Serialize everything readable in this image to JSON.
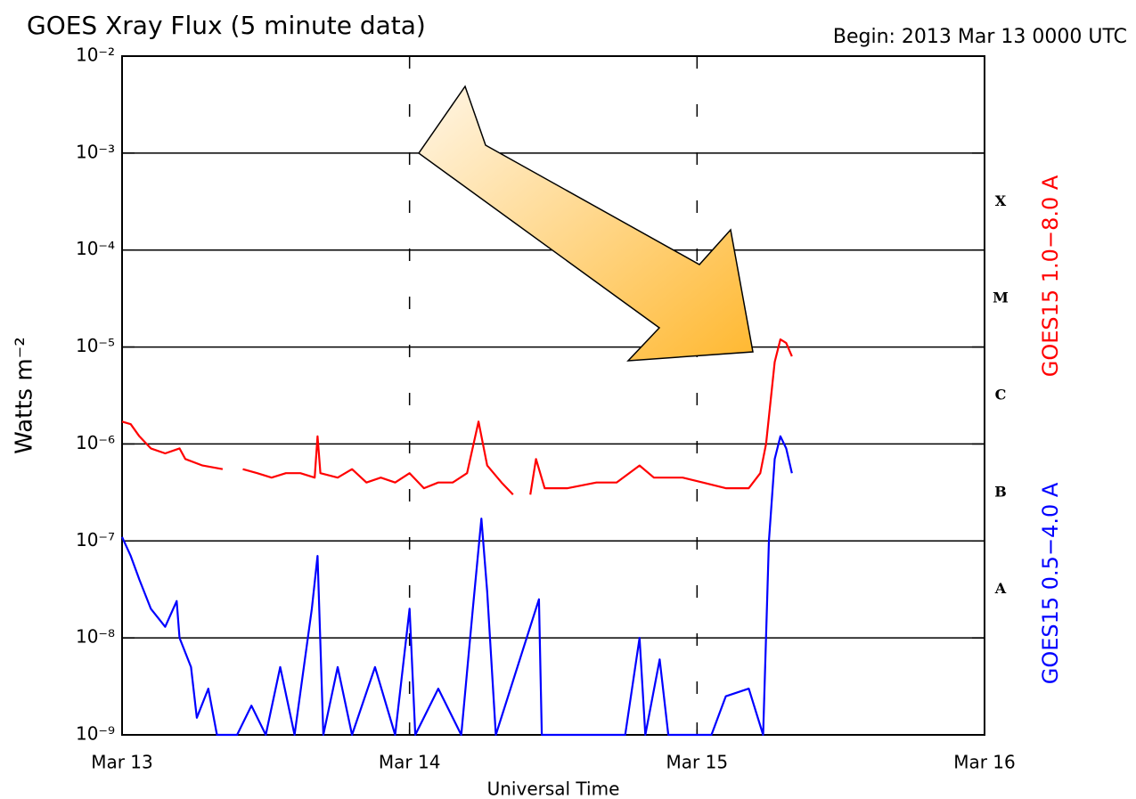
{
  "chart_data": {
    "type": "line",
    "title": "GOES Xray Flux (5 minute data)",
    "subtitle": "Begin:  2013 Mar 13 0000 UTC",
    "xlabel": "Universal Time",
    "ylabel": "Watts m⁻²",
    "log_y": true,
    "grid": true,
    "xlim": [
      0,
      3
    ],
    "xticks": [
      {
        "value": 0,
        "label": "Mar 13"
      },
      {
        "value": 1,
        "label": "Mar 14"
      },
      {
        "value": 2,
        "label": "Mar 15"
      },
      {
        "value": 3,
        "label": "Mar 16"
      }
    ],
    "ylim": [
      1e-09,
      0.01
    ],
    "yticks": [
      {
        "value": 1e-09,
        "label": "10⁻⁹"
      },
      {
        "value": 1e-08,
        "label": "10⁻⁸"
      },
      {
        "value": 1e-07,
        "label": "10⁻⁷"
      },
      {
        "value": 1e-06,
        "label": "10⁻⁶"
      },
      {
        "value": 1e-05,
        "label": "10⁻⁵"
      },
      {
        "value": 0.0001,
        "label": "10⁻⁴"
      },
      {
        "value": 0.001,
        "label": "10⁻³"
      },
      {
        "value": 0.01,
        "label": "10⁻²"
      }
    ],
    "flare_classes": [
      "A",
      "B",
      "C",
      "M",
      "X"
    ],
    "series": [
      {
        "name": "GOES15 1.0−8.0 A",
        "color": "#ff0000",
        "x": [
          0,
          0.03,
          0.06,
          0.1,
          0.15,
          0.2,
          0.22,
          0.28,
          0.35,
          0.38,
          0.42,
          0.47,
          0.52,
          0.57,
          0.62,
          0.67,
          0.68,
          0.69,
          0.75,
          0.8,
          0.85,
          0.9,
          0.95,
          1.0,
          1.05,
          1.1,
          1.15,
          1.2,
          1.24,
          1.27,
          1.32,
          1.36,
          1.38,
          1.42,
          1.44,
          1.47,
          1.55,
          1.65,
          1.72,
          1.8,
          1.85,
          1.95,
          2.02,
          2.1,
          2.18,
          2.22,
          2.24,
          2.27,
          2.29,
          2.31,
          2.33
        ],
        "values": [
          1.7e-06,
          1.6e-06,
          1.2e-06,
          9e-07,
          8e-07,
          9e-07,
          7e-07,
          6e-07,
          5.5e-07,
          null,
          5.5e-07,
          5e-07,
          4.5e-07,
          5e-07,
          5e-07,
          4.5e-07,
          1.2e-06,
          5e-07,
          4.5e-07,
          5.5e-07,
          4e-07,
          4.5e-07,
          4e-07,
          5e-07,
          3.5e-07,
          4e-07,
          4e-07,
          5e-07,
          1.7e-06,
          6e-07,
          4e-07,
          3e-07,
          null,
          3e-07,
          7e-07,
          3.5e-07,
          3.5e-07,
          4e-07,
          4e-07,
          6e-07,
          4.5e-07,
          4.5e-07,
          4e-07,
          3.5e-07,
          3.5e-07,
          5e-07,
          1e-06,
          7e-06,
          1.2e-05,
          1.1e-05,
          8e-06
        ]
      },
      {
        "name": "GOES15 0.5−4.0 A",
        "color": "#0000ff",
        "x": [
          0,
          0.03,
          0.06,
          0.1,
          0.15,
          0.19,
          0.2,
          0.24,
          0.26,
          0.3,
          0.33,
          0.4,
          0.45,
          0.5,
          0.55,
          0.6,
          0.66,
          0.68,
          0.7,
          0.75,
          0.8,
          0.88,
          0.95,
          1.0,
          1.02,
          1.1,
          1.18,
          1.22,
          1.25,
          1.27,
          1.3,
          1.45,
          1.46,
          1.6,
          1.75,
          1.8,
          1.82,
          1.87,
          1.9,
          2.05,
          2.1,
          2.18,
          2.23,
          2.25,
          2.27,
          2.29,
          2.31,
          2.33
        ],
        "values": [
          1.1e-07,
          7e-08,
          4e-08,
          2e-08,
          1.3e-08,
          2.4e-08,
          1e-08,
          5e-09,
          1.5e-09,
          3e-09,
          1e-09,
          1e-09,
          2e-09,
          1e-09,
          5e-09,
          1e-09,
          2e-08,
          7e-08,
          1e-09,
          5e-09,
          1e-09,
          5e-09,
          1e-09,
          2e-08,
          1e-09,
          3e-09,
          1e-09,
          2e-08,
          1.7e-07,
          3e-08,
          1e-09,
          2.5e-08,
          1e-09,
          1e-09,
          1e-09,
          1e-08,
          1e-09,
          6e-09,
          1e-09,
          1e-09,
          2.5e-09,
          3e-09,
          1e-09,
          1e-07,
          7e-07,
          1.2e-06,
          9e-07,
          5e-07
        ]
      }
    ]
  }
}
